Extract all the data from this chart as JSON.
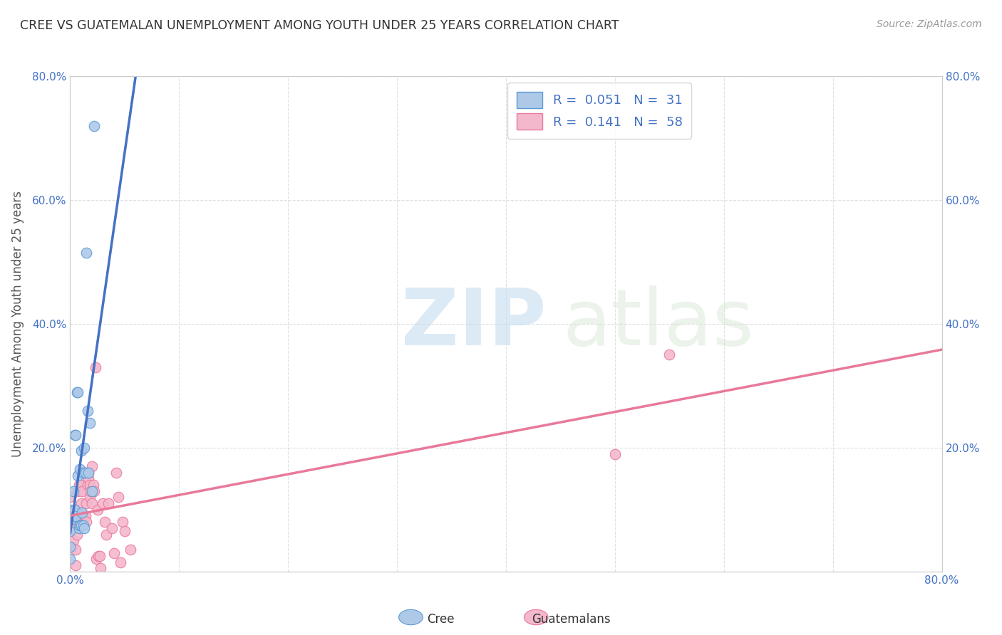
{
  "title": "CREE VS GUATEMALAN UNEMPLOYMENT AMONG YOUTH UNDER 25 YEARS CORRELATION CHART",
  "source": "Source: ZipAtlas.com",
  "ylabel": "Unemployment Among Youth under 25 years",
  "xlim": [
    0.0,
    0.8
  ],
  "ylim": [
    0.0,
    0.8
  ],
  "xticks": [
    0.0,
    0.1,
    0.2,
    0.3,
    0.4,
    0.5,
    0.6,
    0.7,
    0.8
  ],
  "yticks": [
    0.0,
    0.2,
    0.4,
    0.6,
    0.8
  ],
  "xtick_labels": [
    "0.0%",
    "",
    "",
    "",
    "",
    "",
    "",
    "",
    "80.0%"
  ],
  "ytick_labels": [
    "",
    "20.0%",
    "40.0%",
    "60.0%",
    "80.0%"
  ],
  "right_ytick_labels": [
    "",
    "20.0%",
    "40.0%",
    "60.0%",
    "80.0%"
  ],
  "cree_color": "#aec9e8",
  "guatemalan_color": "#f4b8cc",
  "cree_edge_color": "#5b9bd5",
  "guatemalan_edge_color": "#e8799a",
  "cree_line_color": "#4472c4",
  "guatemalan_line_color": "#e8799a",
  "cree_dash_color": "#a0bce0",
  "cree_R": 0.051,
  "cree_N": 31,
  "guatemalan_R": 0.141,
  "guatemalan_N": 58,
  "background_color": "#ffffff",
  "grid_color": "#cccccc",
  "cree_points_x": [
    0.0,
    0.0,
    0.0,
    0.0,
    0.001,
    0.002,
    0.003,
    0.004,
    0.004,
    0.005,
    0.005,
    0.006,
    0.007,
    0.007,
    0.008,
    0.009,
    0.009,
    0.01,
    0.01,
    0.011,
    0.012,
    0.012,
    0.013,
    0.013,
    0.014,
    0.015,
    0.016,
    0.017,
    0.018,
    0.02,
    0.022
  ],
  "cree_points_y": [
    0.02,
    0.04,
    0.065,
    0.1,
    0.085,
    0.09,
    0.13,
    0.1,
    0.22,
    0.09,
    0.22,
    0.29,
    0.29,
    0.155,
    0.07,
    0.075,
    0.165,
    0.075,
    0.195,
    0.095,
    0.075,
    0.16,
    0.07,
    0.2,
    0.16,
    0.515,
    0.26,
    0.16,
    0.24,
    0.13,
    0.72
  ],
  "guatemalan_points_x": [
    0.0,
    0.0,
    0.0,
    0.0,
    0.002,
    0.003,
    0.004,
    0.004,
    0.005,
    0.005,
    0.005,
    0.006,
    0.007,
    0.007,
    0.008,
    0.008,
    0.009,
    0.009,
    0.01,
    0.01,
    0.01,
    0.011,
    0.012,
    0.012,
    0.013,
    0.014,
    0.015,
    0.015,
    0.016,
    0.017,
    0.017,
    0.018,
    0.018,
    0.019,
    0.02,
    0.02,
    0.021,
    0.022,
    0.023,
    0.024,
    0.025,
    0.026,
    0.027,
    0.028,
    0.03,
    0.032,
    0.033,
    0.035,
    0.038,
    0.04,
    0.042,
    0.044,
    0.046,
    0.048,
    0.05,
    0.055,
    0.5,
    0.55
  ],
  "guatemalan_points_y": [
    0.07,
    0.075,
    0.08,
    0.12,
    0.04,
    0.05,
    0.07,
    0.07,
    0.01,
    0.035,
    0.1,
    0.06,
    0.08,
    0.13,
    0.08,
    0.14,
    0.1,
    0.095,
    0.08,
    0.11,
    0.14,
    0.13,
    0.16,
    0.09,
    0.16,
    0.09,
    0.08,
    0.11,
    0.14,
    0.15,
    0.16,
    0.12,
    0.14,
    0.13,
    0.11,
    0.17,
    0.14,
    0.13,
    0.33,
    0.02,
    0.1,
    0.025,
    0.025,
    0.005,
    0.11,
    0.08,
    0.06,
    0.11,
    0.07,
    0.03,
    0.16,
    0.12,
    0.015,
    0.08,
    0.065,
    0.035,
    0.19,
    0.35
  ]
}
